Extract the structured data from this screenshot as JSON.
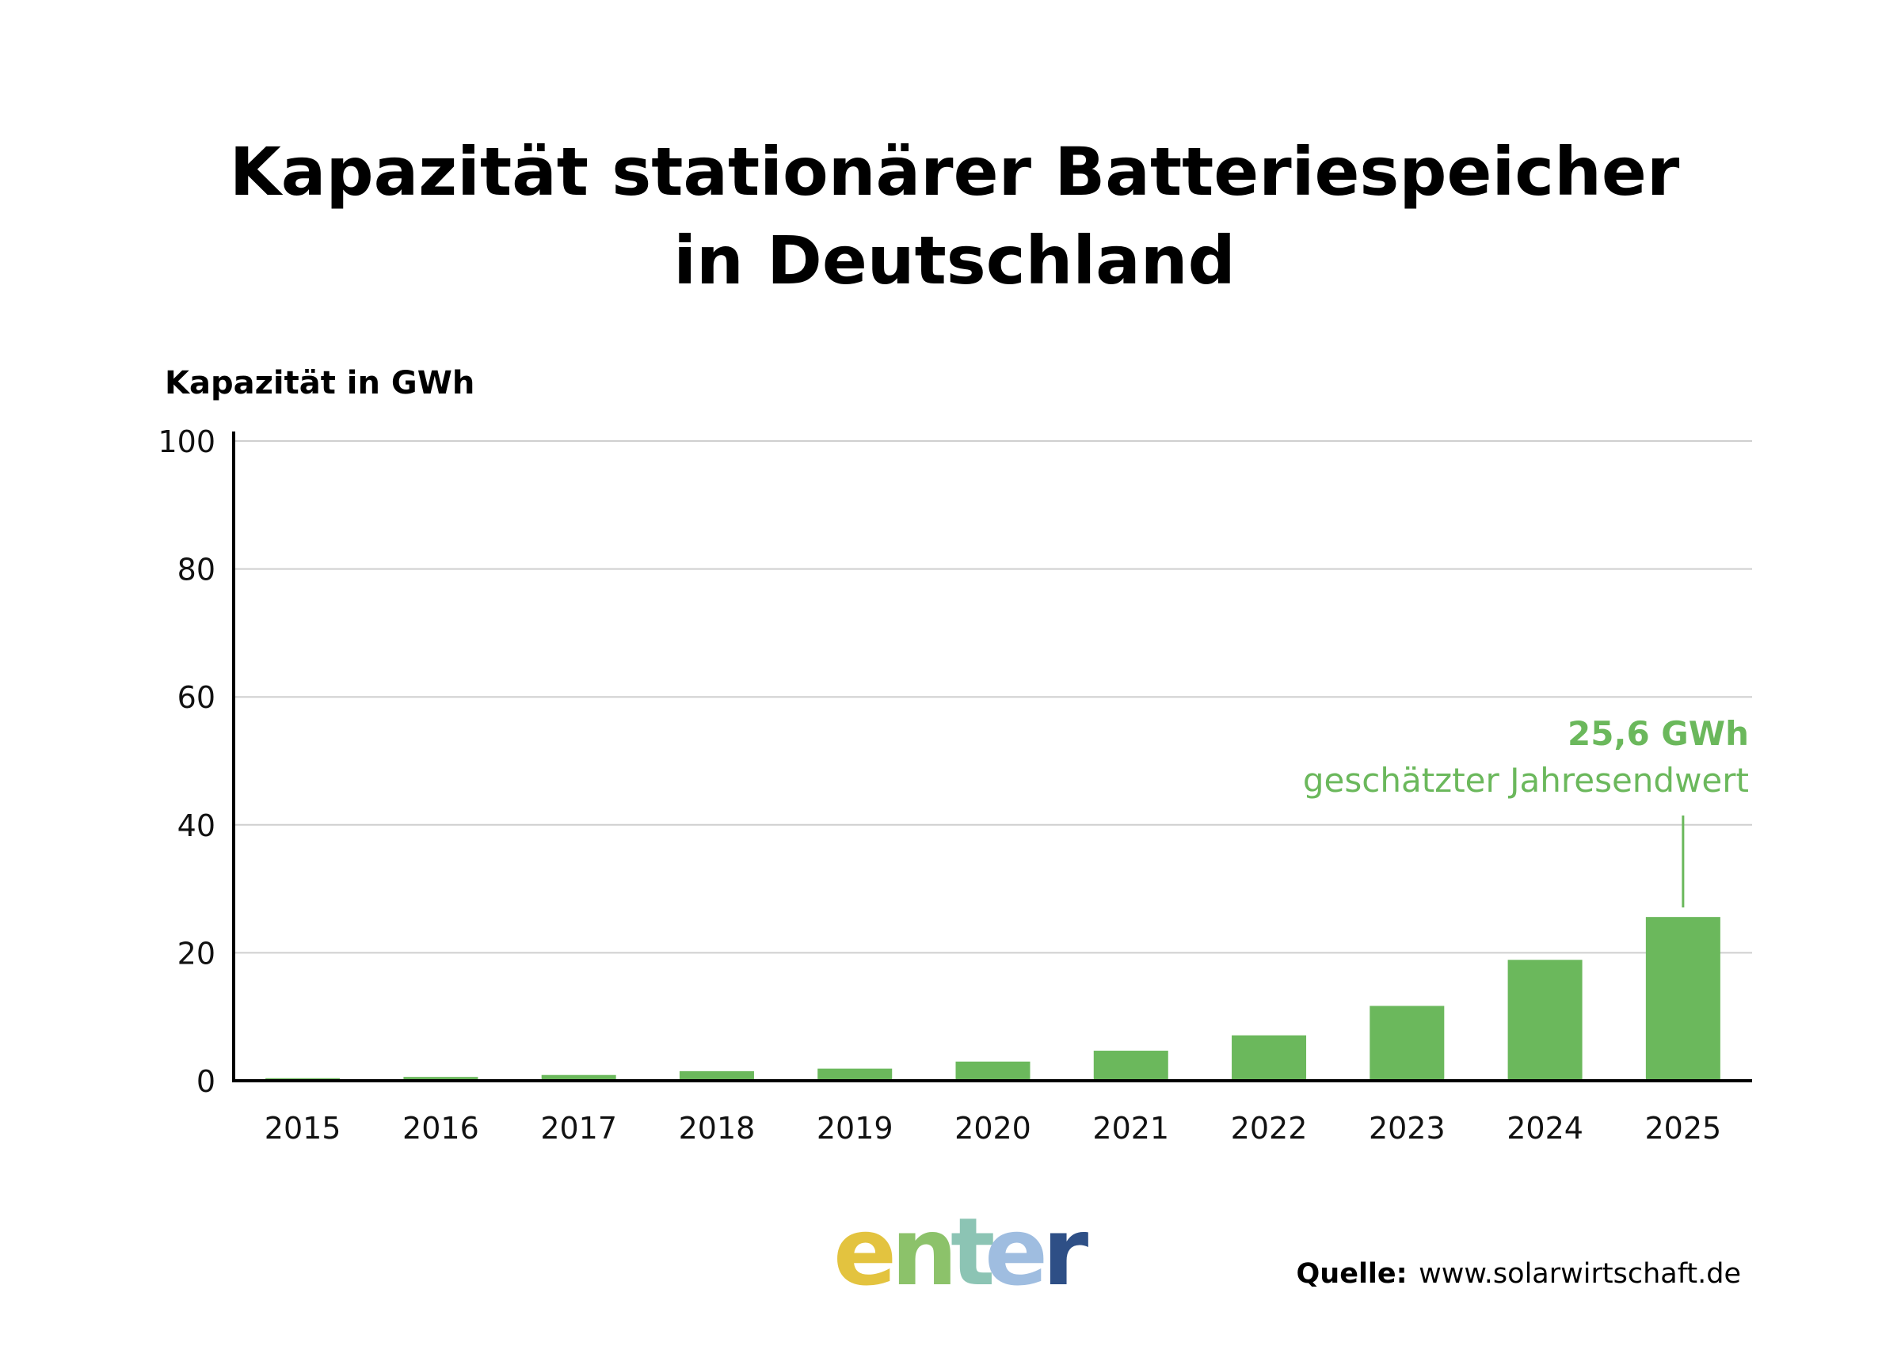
{
  "chart_data": {
    "type": "bar",
    "title": "Kapazität stationärer Batteriespeicher in Deutschland",
    "title_lines": [
      "Kapazität stationärer Batteriespeicher",
      "in Deutschland"
    ],
    "ylabel": "Kapazität in GWh",
    "xlabel": "",
    "categories": [
      "2015",
      "2016",
      "2017",
      "2018",
      "2019",
      "2020",
      "2021",
      "2022",
      "2023",
      "2024",
      "2025"
    ],
    "values": [
      0.4,
      0.6,
      0.9,
      1.5,
      1.9,
      3.0,
      4.7,
      7.1,
      11.7,
      18.9,
      25.6
    ],
    "ylim": [
      0,
      100
    ],
    "yticks": [
      "0",
      "20",
      "40",
      "60",
      "80",
      "100"
    ],
    "ytick_values": [
      0,
      20,
      40,
      60,
      80,
      100
    ],
    "grid": true,
    "bar_color": "#6bb85c",
    "annotation": {
      "category": "2025",
      "value_text": "25,6 GWh",
      "text": "geschätzter Jahresendwert",
      "color": "#6bb85c"
    }
  },
  "logo": {
    "letters": [
      "e",
      "n",
      "t",
      "e",
      "r"
    ],
    "colors": [
      "#e3c33f",
      "#8cc26a",
      "#8cc4b4",
      "#9fbde0",
      "#2e4f86"
    ]
  },
  "source": {
    "label": "Quelle:",
    "value": "www.solarwirtschaft.de"
  }
}
